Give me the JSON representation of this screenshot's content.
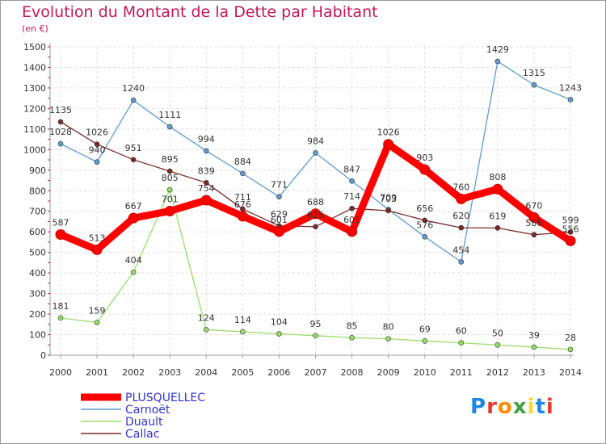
{
  "title": "Evolution du Montant de la Dette par Habitant",
  "unit": "(en €)",
  "brand": {
    "letters": [
      "P",
      "r",
      "o",
      "x",
      "i",
      "t",
      "i"
    ],
    "colors": [
      "#1e88e5",
      "#e53935",
      "#fb8c00",
      "#43a047",
      "#fdd835",
      "#1e88e5",
      "#e53935"
    ]
  },
  "chart_data": {
    "type": "line",
    "title": "Evolution du Montant de la Dette par Habitant",
    "ylabel": "(en €)",
    "xlabel": "",
    "ylim": [
      0,
      1500
    ],
    "yticks": [
      0,
      100,
      200,
      300,
      400,
      500,
      600,
      700,
      800,
      900,
      1000,
      1100,
      1200,
      1300,
      1400,
      1500
    ],
    "grid": true,
    "legend": "bottom-left",
    "categories": [
      "2000",
      "2001",
      "2002",
      "2003",
      "2004",
      "2005",
      "2006",
      "2007",
      "2008",
      "2009",
      "2010",
      "2011",
      "2012",
      "2013",
      "2014"
    ],
    "series": [
      {
        "name": "PLUSQUELLEC",
        "color": "#ff0000",
        "values": [
          587,
          513,
          667,
          701,
          754,
          676,
          601,
          688,
          601,
          1026,
          903,
          760,
          808,
          670,
          556
        ]
      },
      {
        "name": "Carnoët",
        "color": "#5f9bd0",
        "values": [
          1028,
          940,
          1240,
          1111,
          994,
          884,
          771,
          984,
          847,
          709,
          576,
          454,
          1429,
          1315,
          1243
        ]
      },
      {
        "name": "Duault",
        "color": "#99dd66",
        "values": [
          181,
          159,
          404,
          805,
          124,
          114,
          104,
          95,
          85,
          80,
          69,
          60,
          50,
          39,
          28
        ]
      },
      {
        "name": "Callac",
        "color": "#7a2a2a",
        "values": [
          1135,
          1026,
          951,
          895,
          839,
          711,
          629,
          625,
          714,
          703,
          656,
          620,
          619,
          586,
          599
        ]
      }
    ]
  }
}
